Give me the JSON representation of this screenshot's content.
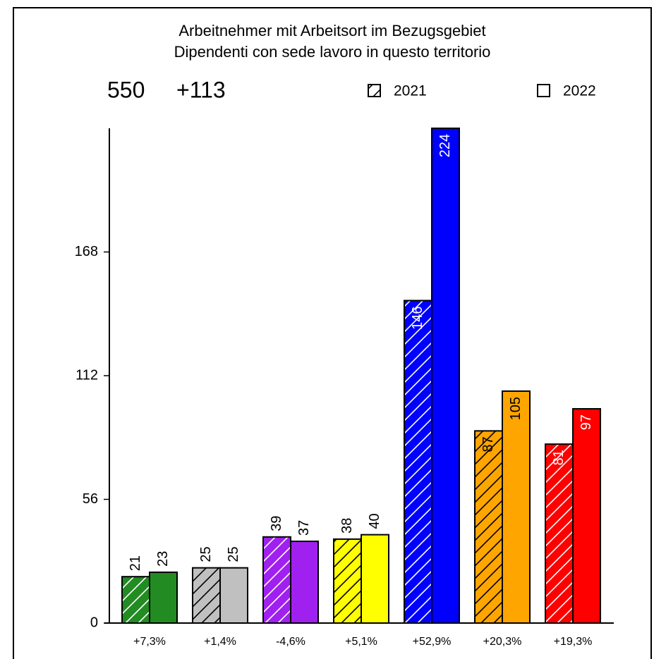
{
  "chart_data": {
    "type": "bar",
    "title": "Arbeitnehmer mit Arbeitsort im Bezugsgebiet",
    "subtitle": "Dipendenti con sede lavoro in questo territorio",
    "summary": [
      "550",
      "+113"
    ],
    "categories": [
      "+7,3%",
      "+1,4%",
      "-4,6%",
      "+5,1%",
      "+52,9%",
      "+20,3%",
      "+19,3%"
    ],
    "colors": [
      "#228b22",
      "#c0c0c0",
      "#a020f0",
      "#ffff00",
      "#0000ff",
      "#ffa500",
      "#ff0000"
    ],
    "series": [
      {
        "name": "2021",
        "hatch": true,
        "values": [
          21,
          25,
          39,
          38,
          146,
          87,
          81
        ]
      },
      {
        "name": "2022",
        "hatch": false,
        "values": [
          23,
          25,
          37,
          40,
          224,
          105,
          97
        ]
      }
    ],
    "ylim": [
      0,
      224
    ],
    "yticks": [
      0,
      56,
      112,
      168
    ]
  }
}
